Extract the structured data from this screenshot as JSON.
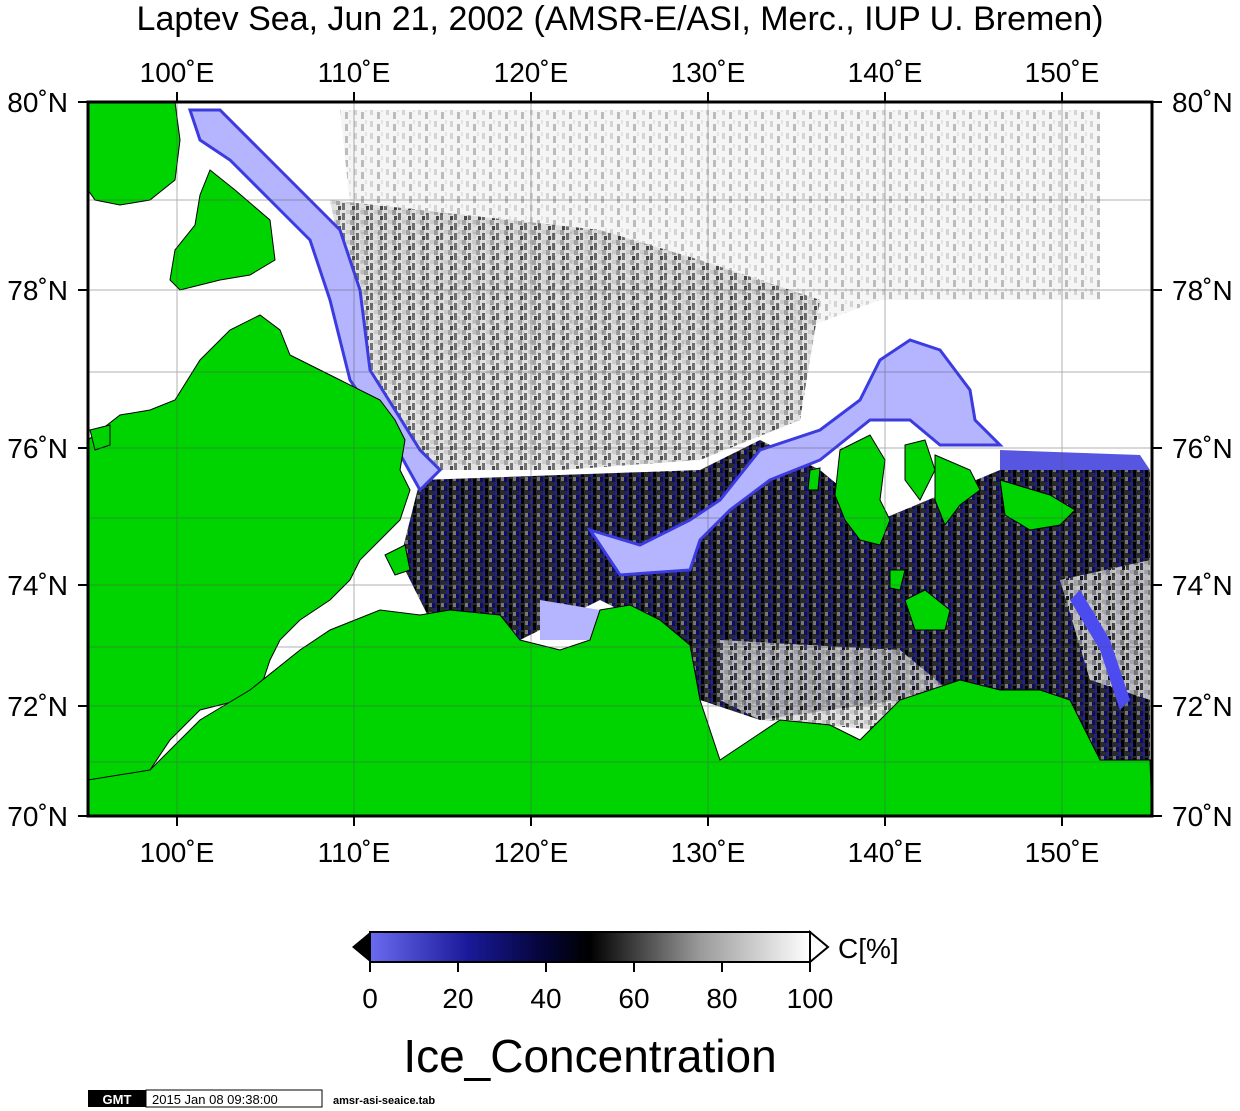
{
  "title": "Laptev Sea, Jun 21, 2002 (AMSR-E/ASI, Merc., IUP U. Bremen)",
  "lon_ticks": [
    "100˚E",
    "110˚E",
    "120˚E",
    "130˚E",
    "140˚E",
    "150˚E"
  ],
  "lat_ticks": [
    "80˚N",
    "78˚N",
    "76˚N",
    "74˚N",
    "72˚N",
    "70˚N"
  ],
  "colorbar": {
    "unit_label": "C[%]",
    "tick_labels": [
      "0",
      "20",
      "40",
      "60",
      "80",
      "100"
    ],
    "colors": [
      "#6b6bf0",
      "#0a0a7a",
      "#000000",
      "#ffffff"
    ]
  },
  "variable_label": "Ice_Concentration",
  "footer": {
    "logo": "GMT",
    "timestamp": "2015 Jan 08 09:38:00",
    "filename": "amsr-asi-seaice.tab"
  },
  "colors": {
    "land": "#00d400",
    "water": "#ffffff",
    "frame": "#000000",
    "low_ice": "#b4b4ff"
  }
}
